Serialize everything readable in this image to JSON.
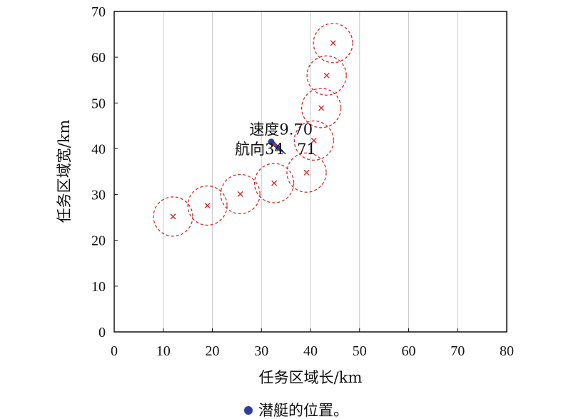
{
  "chart_data": {
    "type": "scatter",
    "xlabel": "任务区域长/km",
    "ylabel": "任务区域宽/km",
    "xlim": [
      0,
      80
    ],
    "ylim": [
      0,
      70
    ],
    "xticks": [
      0,
      10,
      20,
      30,
      40,
      50,
      60,
      70,
      80
    ],
    "yticks": [
      0,
      10,
      20,
      30,
      40,
      50,
      60,
      70
    ],
    "grid": true,
    "circle_radius_km": 4,
    "markers": [
      {
        "x": 12,
        "y": 25.2
      },
      {
        "x": 19,
        "y": 27.6
      },
      {
        "x": 25.7,
        "y": 30.1
      },
      {
        "x": 32.6,
        "y": 32.5
      },
      {
        "x": 39.2,
        "y": 34.8
      },
      {
        "x": 40.7,
        "y": 41.8
      },
      {
        "x": 42.2,
        "y": 48.9
      },
      {
        "x": 43.3,
        "y": 56
      },
      {
        "x": 44.6,
        "y": 63.1
      }
    ],
    "submarine": {
      "x": 32,
      "y": 41.5,
      "heading_to": {
        "x": 35,
        "y": 38.8
      }
    },
    "annotations": [
      {
        "text": "速度9.70",
        "x": 34,
        "y": 43.1
      },
      {
        "text": "航向34",
        "x": 29.6,
        "y": 38.8
      },
      {
        "text": "71",
        "x": 39.2,
        "y": 38.8
      }
    ],
    "colors": {
      "marker": "#d42a2a",
      "circle": "#d42a2a",
      "submarine": "#2d3d9c",
      "grid": "#c8c8c8"
    },
    "legend": {
      "label": "潜艇的位置。",
      "color": "#2d3d9c",
      "placement": "bottom-center"
    }
  }
}
